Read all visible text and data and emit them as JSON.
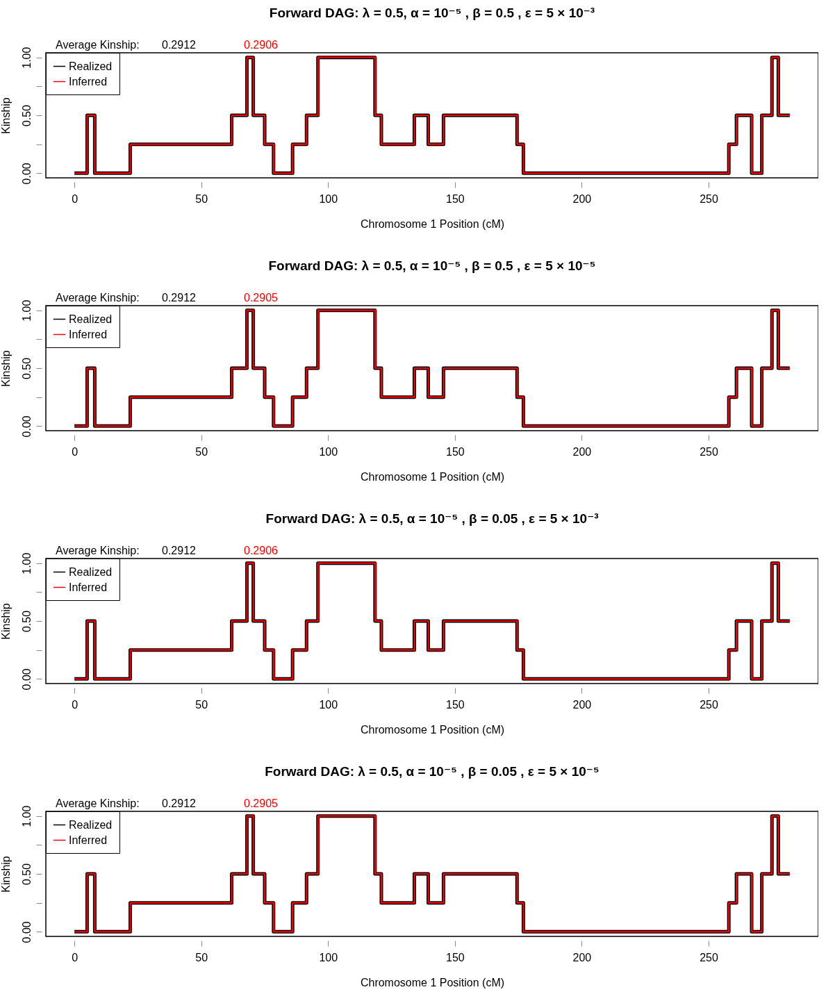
{
  "chart_data": [
    {
      "type": "step",
      "title": "Forward DAG:  λ = 0.5,  α = 10⁻⁵ ,  β  =  0.5 ,  ε  =  5 × 10⁻³",
      "xlabel": "Chromosome 1 Position (cM)",
      "ylabel": "Kinship",
      "annotations": [
        "Average Kinship:",
        "0.2912",
        "0.2906"
      ],
      "legend": "top left",
      "grid": false,
      "xlim": [
        -11.28,
        293.28
      ],
      "ylim": [
        -0.04,
        1.04
      ],
      "xticks": [
        0,
        50,
        100,
        150,
        200,
        250
      ],
      "yticks": [
        {
          "value": 0,
          "label": "0.00"
        },
        {
          "value": 0.25,
          "label": null
        },
        {
          "value": 0.5,
          "label": "0.50"
        },
        {
          "value": 0.75,
          "label": null
        },
        {
          "value": 1,
          "label": "1.00"
        }
      ],
      "x": [
        0,
        5,
        8,
        22,
        62,
        68,
        70.5,
        75,
        78.5,
        86,
        91.5,
        96,
        118.5,
        121,
        134,
        139.5,
        145.5,
        174.5,
        177,
        258,
        261,
        267,
        271,
        275,
        277.5,
        282
      ],
      "series": [
        {
          "name": "Realized",
          "color": "#000000",
          "values": [
            0,
            0.5,
            0,
            0.25,
            0.5,
            1,
            0.5,
            0.25,
            0,
            0.25,
            0.5,
            1,
            0.5,
            0.25,
            0.5,
            0.25,
            0.5,
            0.25,
            0,
            0.25,
            0.5,
            0,
            0.5,
            1,
            0.5,
            0.5
          ]
        },
        {
          "name": "Inferred",
          "color": "#ff0000",
          "values": [
            0,
            0.5,
            0,
            0.25,
            0.5,
            1,
            0.5,
            0.25,
            0,
            0.25,
            0.5,
            1,
            0.5,
            0.25,
            0.5,
            0.25,
            0.5,
            0.25,
            0,
            0.25,
            0.5,
            0,
            0.5,
            1,
            0.5,
            0.5
          ]
        }
      ]
    },
    {
      "type": "step",
      "title": "Forward DAG:  λ = 0.5,  α = 10⁻⁵ ,  β  =  0.5 ,  ε  =  5 × 10⁻⁵",
      "xlabel": "Chromosome 1 Position (cM)",
      "ylabel": "Kinship",
      "annotations": [
        "Average Kinship:",
        "0.2912",
        "0.2905"
      ],
      "legend": "top left",
      "grid": false,
      "xlim": [
        -11.28,
        293.28
      ],
      "ylim": [
        -0.04,
        1.04
      ],
      "xticks": [
        0,
        50,
        100,
        150,
        200,
        250
      ],
      "yticks": [
        {
          "value": 0,
          "label": "0.00"
        },
        {
          "value": 0.25,
          "label": null
        },
        {
          "value": 0.5,
          "label": "0.50"
        },
        {
          "value": 0.75,
          "label": null
        },
        {
          "value": 1,
          "label": "1.00"
        }
      ],
      "x": [
        0,
        5,
        8,
        22,
        62,
        68,
        70.5,
        75,
        78.5,
        86,
        91.5,
        96,
        118.5,
        121,
        134,
        139.5,
        145.5,
        174.5,
        177,
        258,
        261,
        267,
        271,
        275,
        277.5,
        282
      ],
      "series": [
        {
          "name": "Realized",
          "color": "#000000",
          "values": [
            0,
            0.5,
            0,
            0.25,
            0.5,
            1,
            0.5,
            0.25,
            0,
            0.25,
            0.5,
            1,
            0.5,
            0.25,
            0.5,
            0.25,
            0.5,
            0.25,
            0,
            0.25,
            0.5,
            0,
            0.5,
            1,
            0.5,
            0.5
          ]
        },
        {
          "name": "Inferred",
          "color": "#ff0000",
          "values": [
            0,
            0.5,
            0,
            0.25,
            0.5,
            1,
            0.5,
            0.25,
            0,
            0.25,
            0.5,
            1,
            0.5,
            0.25,
            0.5,
            0.25,
            0.5,
            0.25,
            0,
            0.25,
            0.5,
            0,
            0.5,
            1,
            0.5,
            0.5
          ]
        }
      ]
    },
    {
      "type": "step",
      "title": "Forward DAG:  λ = 0.5,  α = 10⁻⁵ ,  β  =  0.05 ,  ε  =  5 × 10⁻³",
      "xlabel": "Chromosome 1 Position (cM)",
      "ylabel": "Kinship",
      "annotations": [
        "Average Kinship:",
        "0.2912",
        "0.2906"
      ],
      "legend": "top left",
      "grid": false,
      "xlim": [
        -11.28,
        293.28
      ],
      "ylim": [
        -0.04,
        1.04
      ],
      "xticks": [
        0,
        50,
        100,
        150,
        200,
        250
      ],
      "yticks": [
        {
          "value": 0,
          "label": "0.00"
        },
        {
          "value": 0.25,
          "label": null
        },
        {
          "value": 0.5,
          "label": "0.50"
        },
        {
          "value": 0.75,
          "label": null
        },
        {
          "value": 1,
          "label": "1.00"
        }
      ],
      "x": [
        0,
        5,
        8,
        22,
        62,
        68,
        70.5,
        75,
        78.5,
        86,
        91.5,
        96,
        118.5,
        121,
        134,
        139.5,
        145.5,
        174.5,
        177,
        258,
        261,
        267,
        271,
        275,
        277.5,
        282
      ],
      "series": [
        {
          "name": "Realized",
          "color": "#000000",
          "values": [
            0,
            0.5,
            0,
            0.25,
            0.5,
            1,
            0.5,
            0.25,
            0,
            0.25,
            0.5,
            1,
            0.5,
            0.25,
            0.5,
            0.25,
            0.5,
            0.25,
            0,
            0.25,
            0.5,
            0,
            0.5,
            1,
            0.5,
            0.5
          ]
        },
        {
          "name": "Inferred",
          "color": "#ff0000",
          "values": [
            0,
            0.5,
            0,
            0.25,
            0.5,
            1,
            0.5,
            0.25,
            0,
            0.25,
            0.5,
            1,
            0.5,
            0.25,
            0.5,
            0.25,
            0.5,
            0.25,
            0,
            0.25,
            0.5,
            0,
            0.5,
            1,
            0.5,
            0.5
          ]
        }
      ]
    },
    {
      "type": "step",
      "title": "Forward DAG:  λ = 0.5,  α = 10⁻⁵ ,  β  =  0.05 ,  ε  =  5 × 10⁻⁵",
      "xlabel": "Chromosome 1 Position (cM)",
      "ylabel": "Kinship",
      "annotations": [
        "Average Kinship:",
        "0.2912",
        "0.2905"
      ],
      "legend": "top left",
      "grid": false,
      "xlim": [
        -11.28,
        293.28
      ],
      "ylim": [
        -0.04,
        1.04
      ],
      "xticks": [
        0,
        50,
        100,
        150,
        200,
        250
      ],
      "yticks": [
        {
          "value": 0,
          "label": "0.00"
        },
        {
          "value": 0.25,
          "label": null
        },
        {
          "value": 0.5,
          "label": "0.50"
        },
        {
          "value": 0.75,
          "label": null
        },
        {
          "value": 1,
          "label": "1.00"
        }
      ],
      "x": [
        0,
        5,
        8,
        22,
        62,
        68,
        70.5,
        75,
        78.5,
        86,
        91.5,
        96,
        118.5,
        121,
        134,
        139.5,
        145.5,
        174.5,
        177,
        258,
        261,
        267,
        271,
        275,
        277.5,
        282
      ],
      "series": [
        {
          "name": "Realized",
          "color": "#000000",
          "values": [
            0,
            0.5,
            0,
            0.25,
            0.5,
            1,
            0.5,
            0.25,
            0,
            0.25,
            0.5,
            1,
            0.5,
            0.25,
            0.5,
            0.25,
            0.5,
            0.25,
            0,
            0.25,
            0.5,
            0,
            0.5,
            1,
            0.5,
            0.5
          ]
        },
        {
          "name": "Inferred",
          "color": "#ff0000",
          "values": [
            0,
            0.5,
            0,
            0.25,
            0.5,
            1,
            0.5,
            0.25,
            0,
            0.25,
            0.5,
            1,
            0.5,
            0.25,
            0.5,
            0.25,
            0.5,
            0.25,
            0,
            0.25,
            0.5,
            0,
            0.5,
            1,
            0.5,
            0.5
          ]
        }
      ]
    }
  ]
}
